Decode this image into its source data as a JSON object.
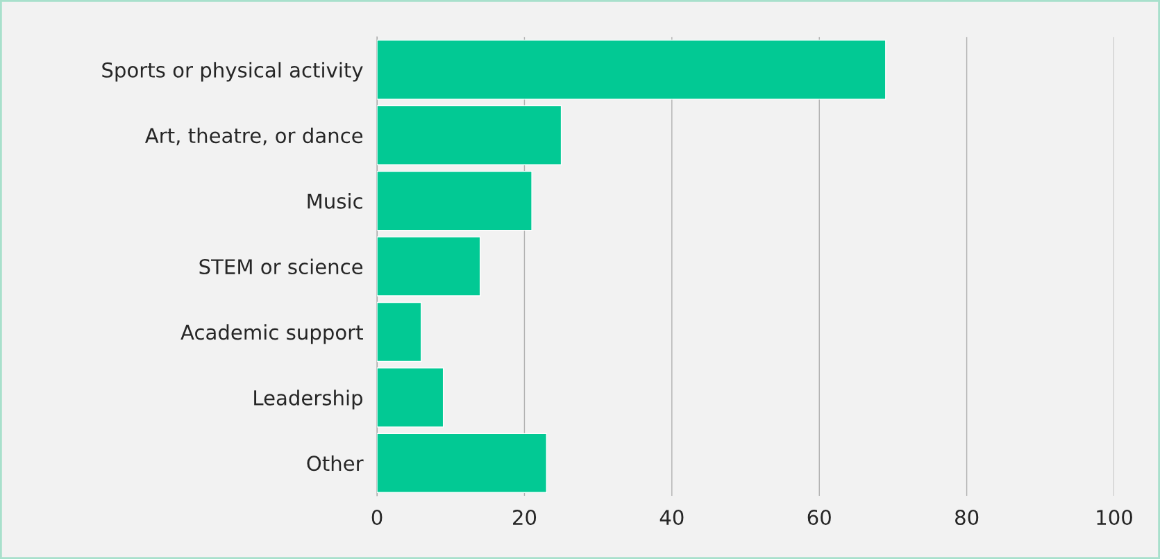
{
  "chart_data": {
    "type": "bar",
    "orientation": "horizontal",
    "categories": [
      "Sports or physical activity",
      "Art, theatre, or dance",
      "Music",
      "STEM or science",
      "Academic support",
      "Leadership",
      "Other"
    ],
    "values": [
      69,
      25,
      21,
      14,
      6,
      9,
      23
    ],
    "color": "#02c994",
    "xlim": [
      0,
      100
    ],
    "xticks": [
      0,
      20,
      40,
      60,
      80,
      100
    ],
    "grid": "x",
    "legend": false
  }
}
